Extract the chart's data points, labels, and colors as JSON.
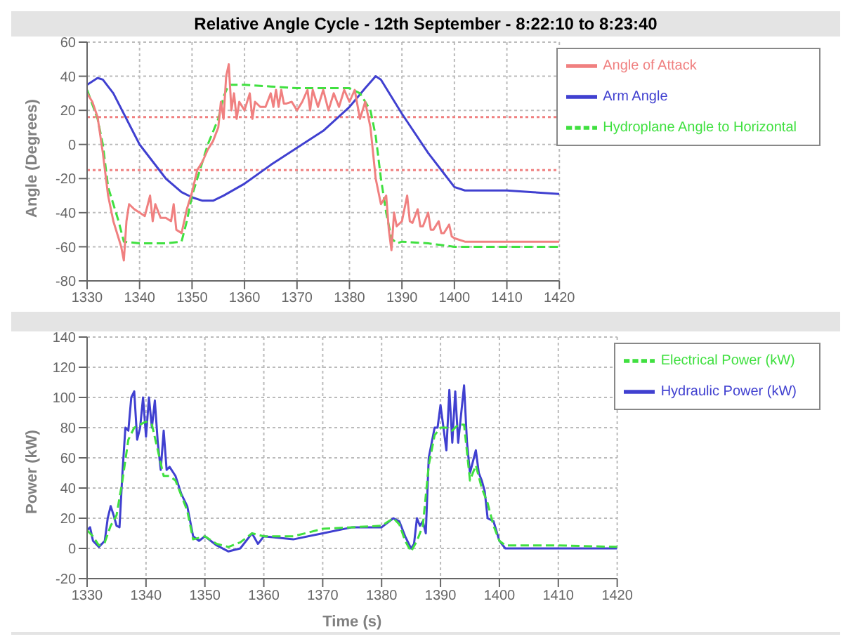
{
  "chart_data": [
    {
      "type": "line",
      "title": "Relative Angle Cycle - 12th September - 8:22:10 to 8:23:40",
      "ylabel": "Angle (Degrees)",
      "xlim": [
        1330,
        1420
      ],
      "xticks": [
        1330,
        1340,
        1350,
        1360,
        1370,
        1380,
        1390,
        1400,
        1410,
        1420
      ],
      "ylim": [
        -80,
        60
      ],
      "yticks": [
        -80,
        -60,
        -40,
        -20,
        0,
        20,
        40,
        60
      ],
      "grid": true,
      "legend": "top right",
      "marker": "none",
      "ref_lines": [
        {
          "axis": "y",
          "value": 16,
          "color": "#f08080",
          "line_style": "dotted"
        },
        {
          "axis": "y",
          "value": -15,
          "color": "#f08080",
          "line_style": "dotted"
        }
      ],
      "series": [
        {
          "name": "Arm Angle",
          "color": "#4040d0",
          "line_style": "solid",
          "x": [
            1330,
            1332,
            1333,
            1335,
            1340,
            1345,
            1348,
            1350,
            1352,
            1354,
            1356,
            1360,
            1365,
            1370,
            1375,
            1380,
            1383,
            1385,
            1386,
            1390,
            1395,
            1398,
            1400,
            1402,
            1410,
            1415,
            1420
          ],
          "values": [
            35,
            39,
            38,
            30,
            0,
            -20,
            -28,
            -31,
            -33,
            -33,
            -30,
            -23,
            -12,
            -2,
            8,
            22,
            33,
            40,
            38,
            18,
            -5,
            -17,
            -25,
            -27,
            -27,
            -28,
            -29
          ]
        },
        {
          "name": "Hydroplane Angle to Horizontal",
          "color": "#40e040",
          "line_style": "dashed",
          "x": [
            1330,
            1332,
            1333,
            1334,
            1336,
            1337,
            1340,
            1345,
            1348,
            1349,
            1350,
            1351,
            1352,
            1353,
            1355,
            1356,
            1357,
            1360,
            1365,
            1370,
            1380,
            1382,
            1384,
            1385,
            1386,
            1387,
            1388,
            1389,
            1390,
            1395,
            1400,
            1410,
            1420
          ],
          "values": [
            32,
            15,
            0,
            -25,
            -45,
            -57,
            -58,
            -58,
            -57,
            -45,
            -30,
            -20,
            -10,
            0,
            15,
            28,
            35,
            35,
            34,
            33,
            33,
            30,
            20,
            5,
            -20,
            -40,
            -55,
            -58,
            -57,
            -58,
            -60,
            -60,
            -60
          ]
        },
        {
          "name": "Angle of Attack",
          "color": "#f08080",
          "line_style": "solid",
          "x": [
            1330,
            1331,
            1332,
            1333,
            1334,
            1335,
            1336,
            1336.5,
            1337,
            1337.5,
            1338,
            1339,
            1340,
            1341,
            1342,
            1342.5,
            1343,
            1344,
            1345,
            1346,
            1346.5,
            1347,
            1348,
            1348.5,
            1349,
            1350,
            1351,
            1352,
            1353,
            1354,
            1355,
            1355.5,
            1356,
            1356.5,
            1357,
            1357.5,
            1358,
            1358.5,
            1359,
            1360,
            1361,
            1361.5,
            1362,
            1363,
            1364,
            1365,
            1365.5,
            1366,
            1366.5,
            1367,
            1367.5,
            1368,
            1369,
            1370,
            1371,
            1372,
            1372.5,
            1373,
            1374,
            1375,
            1376,
            1377,
            1378,
            1379,
            1380,
            1381,
            1382,
            1383,
            1384,
            1385,
            1386,
            1387,
            1387.5,
            1388,
            1388.5,
            1389,
            1390,
            1391,
            1391.5,
            1392,
            1393,
            1393.5,
            1394,
            1395,
            1395.5,
            1396,
            1397,
            1397.5,
            1398,
            1399,
            1399.5,
            1400,
            1402,
            1405,
            1410,
            1420
          ],
          "values": [
            30,
            25,
            16,
            -5,
            -30,
            -45,
            -55,
            -60,
            -68,
            -45,
            -35,
            -38,
            -40,
            -42,
            -30,
            -45,
            -35,
            -43,
            -43,
            -45,
            -35,
            -50,
            -52,
            -45,
            -38,
            -28,
            -15,
            -10,
            -3,
            2,
            10,
            25,
            15,
            40,
            47,
            20,
            30,
            15,
            25,
            20,
            30,
            15,
            25,
            22,
            22,
            30,
            22,
            32,
            22,
            32,
            24,
            24,
            25,
            20,
            25,
            32,
            20,
            32,
            22,
            32,
            20,
            30,
            22,
            32,
            25,
            32,
            15,
            25,
            10,
            -20,
            -35,
            -30,
            -50,
            -62,
            -40,
            -48,
            -45,
            -30,
            -45,
            -46,
            -38,
            -48,
            -48,
            -40,
            -50,
            -50,
            -45,
            -52,
            -52,
            -47,
            -54,
            -55,
            -57,
            -57,
            -57,
            -57
          ]
        }
      ]
    },
    {
      "type": "line",
      "xlabel": "Time (s)",
      "ylabel": "Power (kW)",
      "xlim": [
        1330,
        1420
      ],
      "xticks": [
        1330,
        1340,
        1350,
        1360,
        1370,
        1380,
        1390,
        1400,
        1410,
        1420
      ],
      "ylim": [
        -20,
        140
      ],
      "yticks": [
        -20,
        0,
        20,
        40,
        60,
        80,
        100,
        120,
        140
      ],
      "grid": true,
      "legend": "top right",
      "marker": "none",
      "series": [
        {
          "name": "Hydraulic Power (kW)",
          "color": "#4040d0",
          "line_style": "solid",
          "x": [
            1330,
            1330.5,
            1331,
            1332,
            1333,
            1333.5,
            1334,
            1334.5,
            1335,
            1335.5,
            1336,
            1336.5,
            1337,
            1337.5,
            1338,
            1338.5,
            1339,
            1339.5,
            1340,
            1340.5,
            1341,
            1341.5,
            1342,
            1342.5,
            1343,
            1343.5,
            1344,
            1345,
            1346,
            1347,
            1348,
            1349,
            1350,
            1352,
            1354,
            1356,
            1358,
            1359,
            1360,
            1365,
            1370,
            1375,
            1380,
            1382,
            1383,
            1384,
            1385,
            1385.5,
            1386,
            1386.5,
            1387,
            1387.5,
            1388,
            1389,
            1389.5,
            1390,
            1391,
            1391.5,
            1392,
            1392.5,
            1393,
            1394,
            1394.5,
            1395,
            1396,
            1396.5,
            1397,
            1397.5,
            1398,
            1399,
            1400,
            1401,
            1410,
            1420
          ],
          "values": [
            12,
            14,
            5,
            1,
            5,
            20,
            28,
            22,
            15,
            14,
            50,
            80,
            78,
            100,
            104,
            72,
            80,
            100,
            74,
            100,
            80,
            98,
            70,
            52,
            78,
            52,
            54,
            48,
            36,
            28,
            8,
            5,
            8,
            2,
            -2,
            0,
            10,
            3,
            8,
            6,
            10,
            14,
            14,
            20,
            18,
            8,
            0,
            3,
            20,
            15,
            18,
            10,
            60,
            80,
            80,
            95,
            65,
            105,
            70,
            104,
            70,
            108,
            70,
            50,
            65,
            50,
            45,
            38,
            20,
            18,
            5,
            0,
            0,
            0
          ]
        },
        {
          "name": "Electrical Power (kW)",
          "color": "#40e040",
          "line_style": "dashed",
          "x": [
            1330,
            1331,
            1332,
            1333,
            1334,
            1335,
            1336,
            1337,
            1338,
            1339,
            1340,
            1341,
            1342,
            1343,
            1344,
            1345,
            1346,
            1347,
            1348,
            1350,
            1352,
            1354,
            1356,
            1358,
            1360,
            1365,
            1369,
            1370,
            1375,
            1380,
            1382,
            1383,
            1384,
            1385,
            1386,
            1387,
            1388,
            1389,
            1390,
            1391,
            1392,
            1393,
            1394,
            1395,
            1396,
            1397,
            1398,
            1399,
            1400,
            1401,
            1410,
            1420
          ],
          "values": [
            12,
            8,
            2,
            4,
            15,
            22,
            45,
            72,
            80,
            82,
            84,
            82,
            65,
            48,
            48,
            45,
            35,
            25,
            6,
            8,
            3,
            1,
            4,
            10,
            8,
            8,
            12,
            13,
            14,
            15,
            20,
            16,
            5,
            -2,
            5,
            15,
            55,
            75,
            80,
            80,
            78,
            82,
            82,
            45,
            55,
            40,
            30,
            15,
            5,
            2,
            2,
            1
          ]
        }
      ]
    }
  ]
}
